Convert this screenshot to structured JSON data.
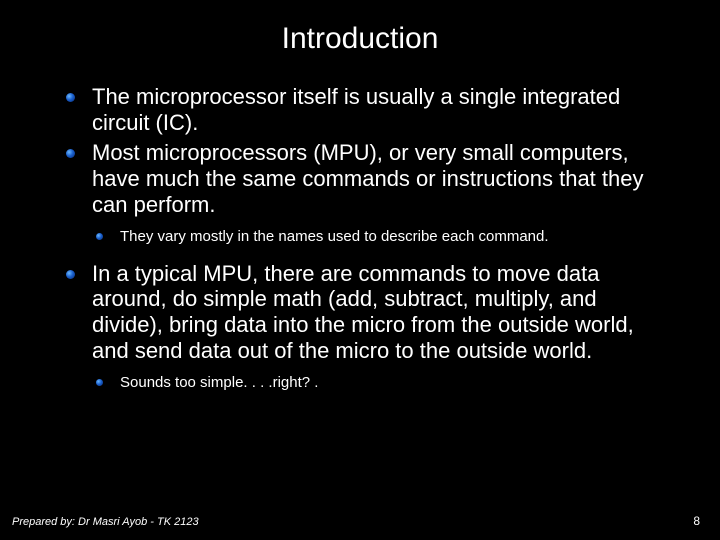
{
  "slide": {
    "title": "Introduction",
    "bullets": [
      {
        "text": "The microprocessor itself is usually a single integrated circuit (IC).",
        "sub": []
      },
      {
        "text": "Most microprocessors (MPU), or very small computers, have much the same commands or instructions that they can perform.",
        "sub": [
          "They vary mostly in the names used to describe each command."
        ]
      },
      {
        "text": "In a typical MPU, there are commands to move data around, do simple math (add, subtract, multiply, and divide), bring data into the micro from the outside world, and send data out of the micro to the outside world.",
        "sub": [
          "Sounds too simple. . . .right? ."
        ]
      }
    ],
    "footer": "Prepared by: Dr Masri Ayob - TK 2123",
    "page_number": "8"
  },
  "style": {
    "background_color": "#000000",
    "text_color": "#ffffff",
    "title_fontsize": 30,
    "body_fontsize": 22,
    "sub_fontsize": 15,
    "footer_fontsize": 11,
    "bullet_gradient": [
      "#6ab8ff",
      "#1a5fcc",
      "#06276e"
    ],
    "font_family": "Arial"
  }
}
